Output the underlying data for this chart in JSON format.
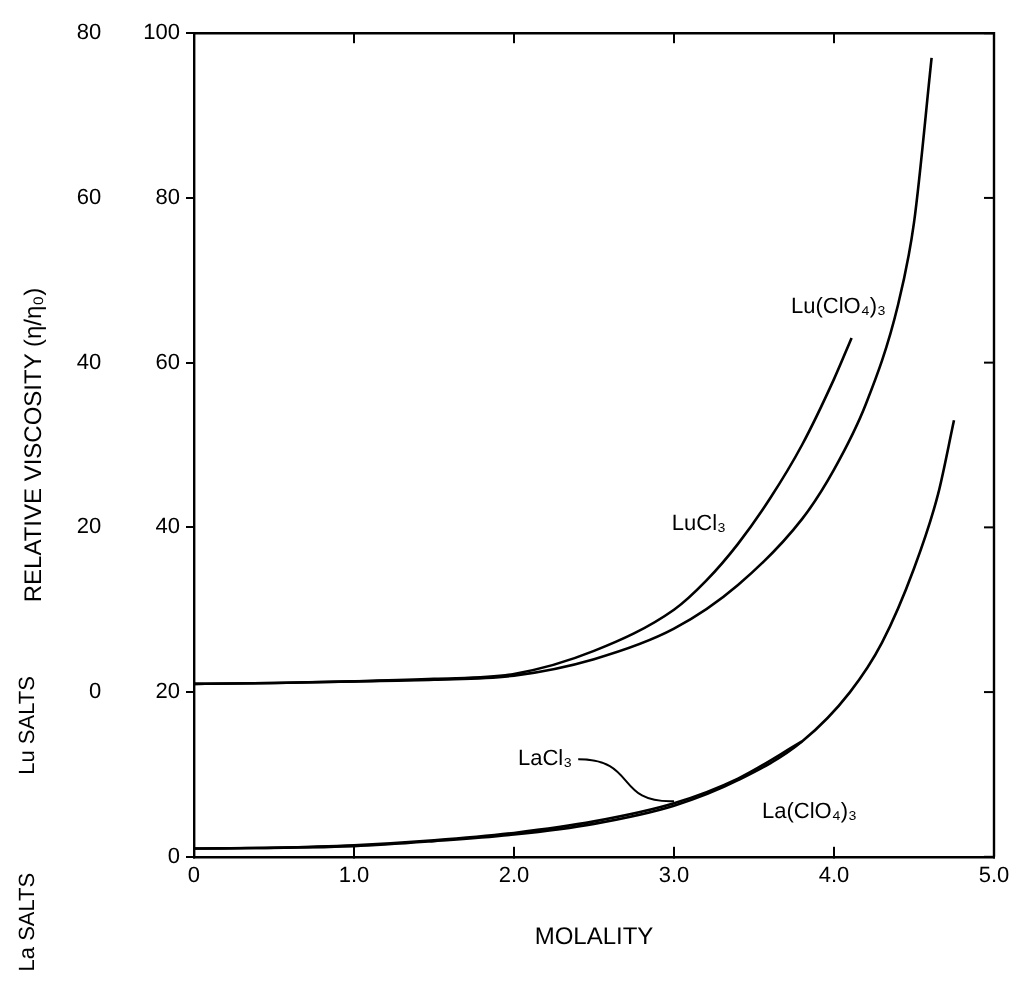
{
  "chart_data": {
    "type": "line",
    "xlabel": "MOLALITY",
    "ylabel": "RELATIVE VISCOSITY (η/η₀)",
    "xlim": [
      0,
      5
    ],
    "xticks": [
      0,
      {
        "value": 1,
        "label": "1.0"
      },
      {
        "value": 2,
        "label": "2.0"
      },
      {
        "value": 3,
        "label": "3.0"
      },
      {
        "value": 4,
        "label": "4.0"
      },
      {
        "value": 5,
        "label": "5.0"
      }
    ],
    "ylim": [
      -20,
      80
    ],
    "yticks": [
      0,
      20,
      40,
      60,
      80
    ],
    "y2lim": [
      0,
      100
    ],
    "y2ticks": [
      0,
      20,
      40,
      60,
      80,
      100
    ],
    "annotations": [
      "Lu SALTS",
      "La SALTS"
    ],
    "grid": false,
    "legend": false,
    "marker": "none",
    "line_style": "solid",
    "series": [
      {
        "name": "LuCl₃",
        "color": "#000000",
        "x": [
          0,
          0.5,
          1,
          1.5,
          2,
          2.5,
          3,
          3.2,
          3.4,
          3.6,
          3.8,
          4,
          4.11
        ],
        "values": [
          1,
          1.1,
          1.3,
          1.6,
          2.2,
          5,
          10,
          13.5,
          18,
          23.5,
          30,
          38,
          43
        ]
      },
      {
        "name": "Lu(ClO₄)₃",
        "color": "#000000",
        "x": [
          0,
          0.5,
          1,
          1.5,
          2,
          2.5,
          3,
          3.4,
          3.8,
          4,
          4.2,
          4.4,
          4.5,
          4.61
        ],
        "values": [
          1,
          1.1,
          1.3,
          1.5,
          2,
          4,
          7.7,
          13,
          21,
          27,
          35,
          47,
          57,
          77
        ]
      },
      {
        "name": "LaCl₃",
        "color": "#000000",
        "axis": "y2",
        "x": [
          0,
          0.5,
          1,
          1.5,
          2,
          2.5,
          3,
          3.4,
          3.8
        ],
        "values": [
          1,
          1.1,
          1.4,
          2,
          2.9,
          4.3,
          6.5,
          9.5,
          14
        ]
      },
      {
        "name": "La(ClO₄)₃",
        "color": "#000000",
        "axis": "y2",
        "x": [
          0,
          1,
          1.5,
          2,
          2.5,
          3,
          3.4,
          3.8,
          4.1,
          4.3,
          4.5,
          4.65,
          4.75
        ],
        "values": [
          1,
          1.3,
          1.9,
          2.7,
          4,
          6.2,
          9.3,
          14,
          20,
          26,
          35,
          44,
          53
        ]
      }
    ]
  }
}
